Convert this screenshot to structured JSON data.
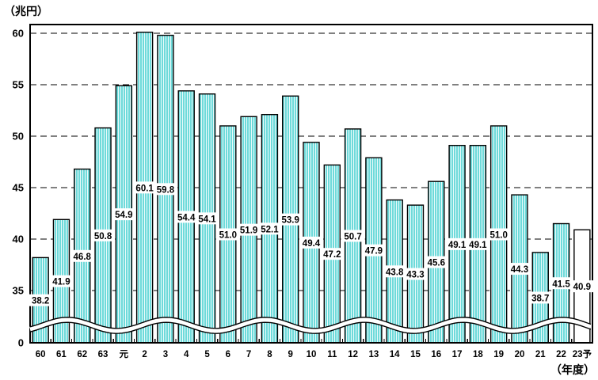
{
  "chart_data": {
    "type": "bar",
    "title": "",
    "ylabel": "（兆円）",
    "xlabel": "（年度）",
    "categories": [
      "60",
      "61",
      "62",
      "63",
      "元",
      "2",
      "3",
      "4",
      "5",
      "6",
      "7",
      "8",
      "9",
      "10",
      "11",
      "12",
      "13",
      "14",
      "15",
      "16",
      "17",
      "18",
      "19",
      "20",
      "21",
      "22",
      "23予"
    ],
    "values": [
      38.2,
      41.9,
      46.8,
      50.8,
      54.9,
      60.1,
      59.8,
      54.4,
      54.1,
      51.0,
      51.9,
      52.1,
      53.9,
      49.4,
      47.2,
      50.7,
      47.9,
      43.8,
      43.3,
      45.6,
      49.1,
      49.1,
      51.0,
      44.3,
      38.7,
      41.5,
      40.9
    ],
    "value_labels": [
      "38.2",
      "41.9",
      "46.8",
      "50.8",
      "54.9",
      "60.1",
      "59.8",
      "54.4",
      "54.1",
      "51.0",
      "51.9",
      "52.1",
      "53.9",
      "49.4",
      "47.2",
      "50.7",
      "47.9",
      "43.8",
      "43.3",
      "45.6",
      "49.1",
      "49.1",
      "51.0",
      "44.3",
      "38.7",
      "41.5",
      "40.9"
    ],
    "yticks": [
      0,
      35,
      40,
      45,
      50,
      55,
      60
    ],
    "ytick_labels": [
      "0",
      "35",
      "40",
      "45",
      "50",
      "55",
      "60"
    ],
    "ylim": [
      35,
      60.9
    ],
    "axis_break_between": [
      0,
      35
    ],
    "grid": "dashed-horizontal",
    "legend": null,
    "colors": {
      "bar_fill": "#6EDADA",
      "bar_stripe": "#E9FAFA",
      "bar_border": "#000000",
      "last_bar_fill": "#FFFFFF",
      "axis": "#000000",
      "text": "#000000",
      "background": "#FFFFFF"
    },
    "highlight_last_bar": {
      "index": 26,
      "fill": "#FFFFFF"
    }
  }
}
